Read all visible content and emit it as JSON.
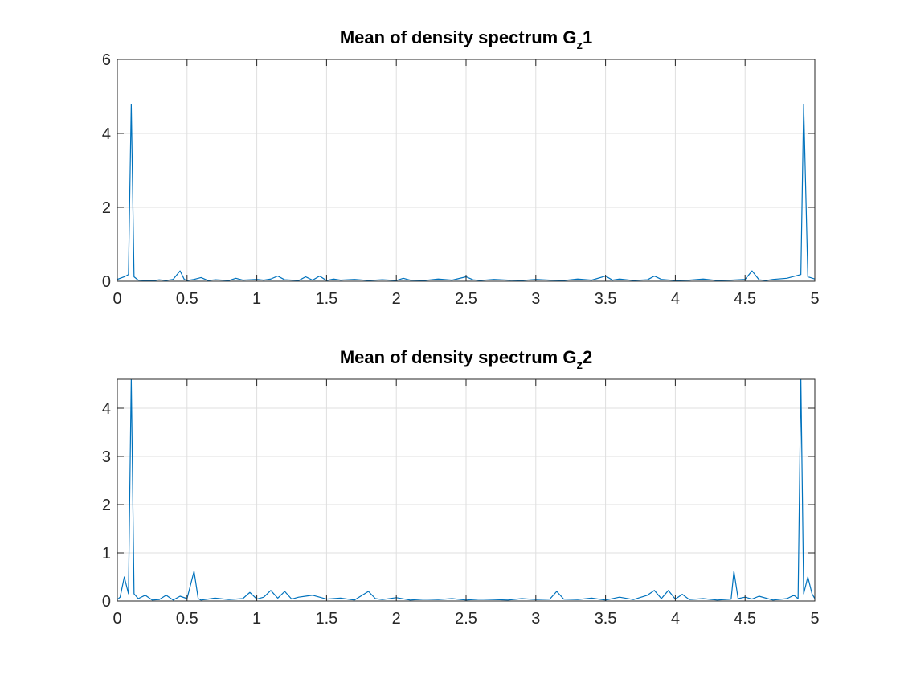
{
  "chart_data": [
    {
      "type": "line",
      "title_main": "Mean of density spectrum G",
      "title_sub": "z",
      "title_tail": "1",
      "xlim": [
        0,
        5
      ],
      "ylim": [
        0,
        6
      ],
      "xticks": [
        "0",
        "0.5",
        "1",
        "1.5",
        "2",
        "2.5",
        "3",
        "3.5",
        "4",
        "4.5",
        "5"
      ],
      "yticks": [
        "0",
        "2",
        "4",
        "6"
      ],
      "grid": true,
      "line_color": "#0072BD",
      "series": [
        {
          "x": [
            0,
            0.05,
            0.08,
            0.1,
            0.12,
            0.15,
            0.2,
            0.25,
            0.3,
            0.35,
            0.4,
            0.45,
            0.48,
            0.5,
            0.55,
            0.6,
            0.65,
            0.7,
            0.8,
            0.85,
            0.9,
            1.0,
            1.05,
            1.1,
            1.15,
            1.2,
            1.3,
            1.35,
            1.4,
            1.45,
            1.5,
            1.55,
            1.6,
            1.7,
            1.8,
            1.9,
            2.0,
            2.05,
            2.1,
            2.2,
            2.3,
            2.4,
            2.5,
            2.55,
            2.6,
            2.7,
            2.8,
            2.9,
            3.0,
            3.1,
            3.2,
            3.3,
            3.4,
            3.5,
            3.55,
            3.6,
            3.7,
            3.8,
            3.85,
            3.9,
            4.0,
            4.1,
            4.2,
            4.3,
            4.4,
            4.5,
            4.55,
            4.6,
            4.65,
            4.7,
            4.8,
            4.9,
            4.92,
            4.95,
            5.0
          ],
          "y": [
            0.05,
            0.12,
            0.18,
            4.78,
            0.12,
            0.03,
            0.02,
            0.01,
            0.04,
            0.02,
            0.05,
            0.28,
            0.05,
            0.02,
            0.05,
            0.1,
            0.02,
            0.04,
            0.02,
            0.08,
            0.03,
            0.05,
            0.03,
            0.06,
            0.14,
            0.04,
            0.02,
            0.12,
            0.03,
            0.14,
            0.02,
            0.06,
            0.03,
            0.05,
            0.02,
            0.04,
            0.02,
            0.08,
            0.03,
            0.02,
            0.06,
            0.03,
            0.12,
            0.04,
            0.02,
            0.05,
            0.03,
            0.02,
            0.05,
            0.03,
            0.02,
            0.06,
            0.03,
            0.14,
            0.03,
            0.06,
            0.02,
            0.04,
            0.14,
            0.05,
            0.02,
            0.03,
            0.06,
            0.02,
            0.03,
            0.05,
            0.28,
            0.04,
            0.02,
            0.05,
            0.08,
            0.18,
            4.78,
            0.12,
            0.06
          ]
        }
      ]
    },
    {
      "type": "line",
      "title_main": "Mean of density spectrum G",
      "title_sub": "z",
      "title_tail": "2",
      "xlim": [
        0,
        5
      ],
      "ylim": [
        0,
        4.6
      ],
      "xticks": [
        "0",
        "0.5",
        "1",
        "1.5",
        "2",
        "2.5",
        "3",
        "3.5",
        "4",
        "4.5",
        "5"
      ],
      "yticks": [
        "0",
        "1",
        "2",
        "3",
        "4"
      ],
      "grid": true,
      "line_color": "#0072BD",
      "series": [
        {
          "x": [
            0,
            0.02,
            0.05,
            0.08,
            0.1,
            0.12,
            0.15,
            0.2,
            0.25,
            0.3,
            0.35,
            0.4,
            0.45,
            0.5,
            0.55,
            0.58,
            0.6,
            0.65,
            0.7,
            0.8,
            0.9,
            0.95,
            1.0,
            1.05,
            1.1,
            1.15,
            1.2,
            1.25,
            1.3,
            1.4,
            1.5,
            1.6,
            1.7,
            1.8,
            1.85,
            1.9,
            2.0,
            2.1,
            2.2,
            2.3,
            2.4,
            2.5,
            2.6,
            2.7,
            2.8,
            2.9,
            3.0,
            3.1,
            3.15,
            3.2,
            3.3,
            3.4,
            3.5,
            3.6,
            3.7,
            3.8,
            3.85,
            3.9,
            3.95,
            4.0,
            4.05,
            4.1,
            4.2,
            4.3,
            4.4,
            4.42,
            4.45,
            4.5,
            4.55,
            4.6,
            4.7,
            4.8,
            4.85,
            4.88,
            4.9,
            4.92,
            4.95,
            4.98,
            5.0
          ],
          "y": [
            0.03,
            0.08,
            0.5,
            0.15,
            4.6,
            0.15,
            0.05,
            0.12,
            0.02,
            0.03,
            0.12,
            0.02,
            0.1,
            0.05,
            0.62,
            0.05,
            0.02,
            0.04,
            0.06,
            0.03,
            0.05,
            0.18,
            0.04,
            0.08,
            0.22,
            0.06,
            0.2,
            0.04,
            0.08,
            0.12,
            0.04,
            0.06,
            0.02,
            0.2,
            0.05,
            0.03,
            0.07,
            0.02,
            0.04,
            0.03,
            0.05,
            0.02,
            0.04,
            0.03,
            0.02,
            0.05,
            0.03,
            0.04,
            0.2,
            0.04,
            0.03,
            0.06,
            0.02,
            0.08,
            0.03,
            0.12,
            0.22,
            0.05,
            0.22,
            0.04,
            0.14,
            0.03,
            0.05,
            0.02,
            0.04,
            0.62,
            0.05,
            0.08,
            0.04,
            0.1,
            0.02,
            0.05,
            0.12,
            0.05,
            4.6,
            0.15,
            0.5,
            0.15,
            0.05
          ]
        }
      ]
    }
  ]
}
